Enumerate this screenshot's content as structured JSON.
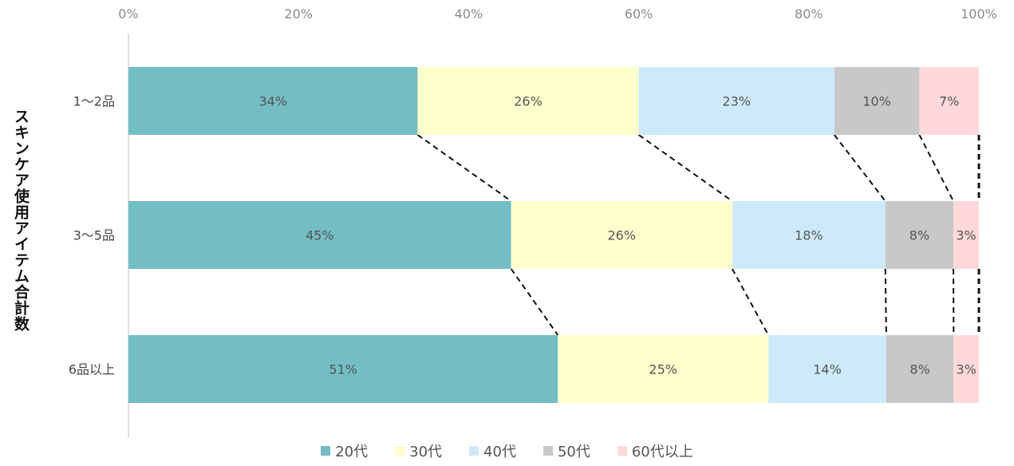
{
  "chart_data": {
    "type": "bar",
    "orientation": "horizontal",
    "stacked": "percent",
    "ylabel": "スキンケア使用アイテム合計数",
    "xlim": [
      0,
      100
    ],
    "x_ticks": [
      "0%",
      "20%",
      "40%",
      "60%",
      "80%",
      "100%"
    ],
    "categories": [
      "1〜2品",
      "3〜5品",
      "6品以上"
    ],
    "series": [
      {
        "name": "20代",
        "color": "#72bec4",
        "values": [
          34,
          45,
          51
        ]
      },
      {
        "name": "30代",
        "color": "#ffffcc",
        "values": [
          26,
          26,
          25
        ]
      },
      {
        "name": "40代",
        "color": "#cdeafb",
        "values": [
          23,
          18,
          14
        ]
      },
      {
        "name": "50代",
        "color": "#c8c8c8",
        "values": [
          10,
          8,
          8
        ]
      },
      {
        "name": "60代以上",
        "color": "#ffd9da",
        "values": [
          7,
          3,
          3
        ]
      }
    ],
    "data_labels": [
      [
        "34%",
        "26%",
        "23%",
        "10%",
        "7%"
      ],
      [
        "45%",
        "26%",
        "18%",
        "8%",
        "3%"
      ],
      [
        "51%",
        "25%",
        "14%",
        "8%",
        "3%"
      ]
    ],
    "series_lines": true,
    "legend_position": "bottom",
    "grid": false
  }
}
